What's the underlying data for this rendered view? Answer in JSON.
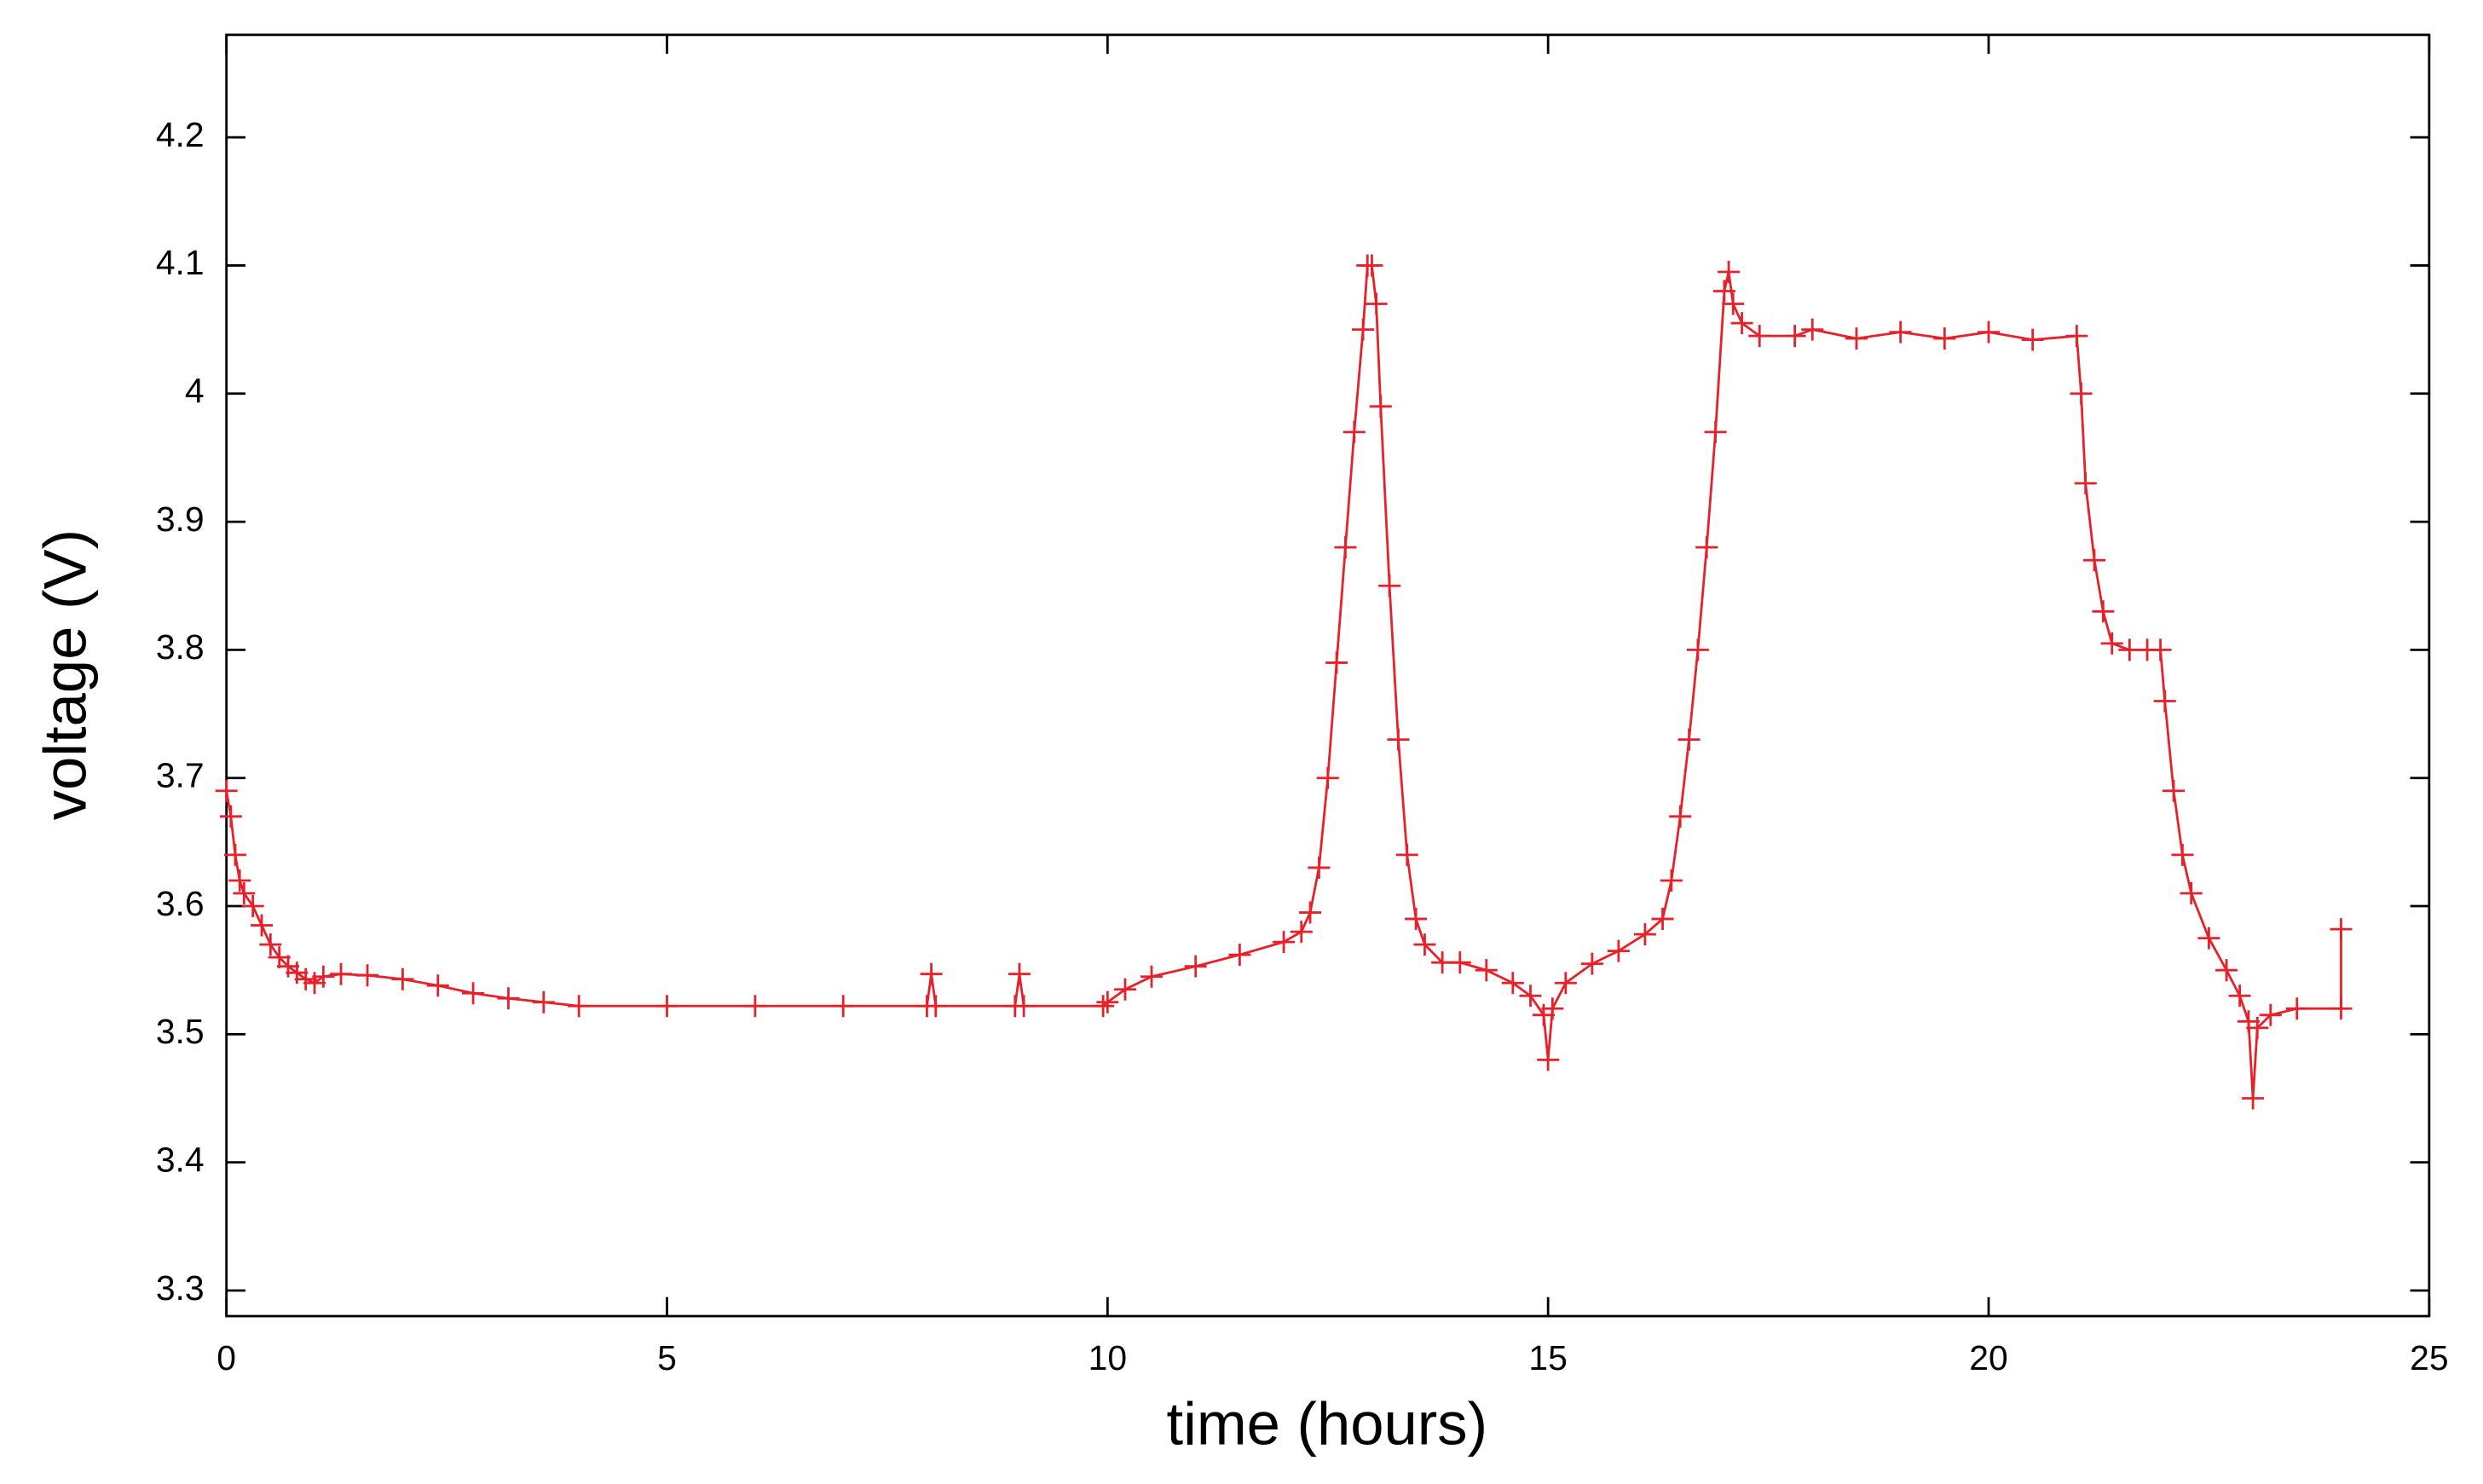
{
  "chart_data": {
    "type": "line",
    "xlabel": "time (hours)",
    "ylabel": "voltage (V)",
    "xlim": [
      0,
      25
    ],
    "xticks": [
      0,
      5,
      10,
      15,
      20,
      25
    ],
    "ylim": [
      3.28,
      4.28
    ],
    "yticks": [
      3.3,
      3.4,
      3.5,
      3.6,
      3.7,
      3.8,
      3.9,
      4,
      4.1,
      4.2
    ],
    "marker": "+",
    "x": [
      0,
      0.05,
      0.1,
      0.15,
      0.2,
      0.3,
      0.4,
      0.5,
      0.6,
      0.7,
      0.8,
      0.9,
      1.0,
      1.1,
      1.3,
      1.6,
      2.0,
      2.4,
      2.8,
      3.2,
      3.6,
      4.0,
      5.0,
      6.0,
      7.0,
      7.95,
      8.0,
      8.05,
      8.95,
      9.0,
      9.05,
      9.95,
      10.0,
      10.2,
      10.5,
      11.0,
      11.5,
      12.0,
      12.2,
      12.3,
      12.4,
      12.5,
      12.6,
      12.7,
      12.8,
      12.9,
      12.95,
      13.0,
      13.05,
      13.1,
      13.2,
      13.3,
      13.4,
      13.5,
      13.6,
      13.8,
      14.0,
      14.3,
      14.6,
      14.8,
      14.95,
      15.0,
      15.05,
      15.2,
      15.5,
      15.8,
      16.1,
      16.3,
      16.4,
      16.5,
      16.6,
      16.7,
      16.8,
      16.9,
      17.0,
      17.05,
      17.1,
      17.2,
      17.4,
      17.8,
      18.0,
      18.5,
      19.0,
      19.5,
      20.0,
      20.5,
      21.0,
      21.05,
      21.1,
      21.2,
      21.3,
      21.4,
      21.6,
      21.8,
      21.95,
      22.0,
      22.1,
      22.2,
      22.3,
      22.5,
      22.7,
      22.85,
      22.95,
      23.0,
      23.05,
      23.2,
      23.5,
      24.0,
      24.0
    ],
    "series": [
      {
        "color": "#e8202a",
        "values": [
          3.69,
          3.67,
          3.64,
          3.62,
          3.61,
          3.6,
          3.585,
          3.57,
          3.56,
          3.553,
          3.548,
          3.543,
          3.54,
          3.545,
          3.547,
          3.546,
          3.543,
          3.538,
          3.532,
          3.528,
          3.525,
          3.522,
          3.522,
          3.522,
          3.522,
          3.522,
          3.547,
          3.522,
          3.522,
          3.547,
          3.522,
          3.522,
          3.525,
          3.535,
          3.545,
          3.553,
          3.562,
          3.572,
          3.58,
          3.595,
          3.63,
          3.7,
          3.79,
          3.88,
          3.97,
          4.05,
          4.1,
          4.1,
          4.07,
          3.99,
          3.85,
          3.73,
          3.64,
          3.59,
          3.57,
          3.556,
          3.556,
          3.55,
          3.54,
          3.53,
          3.515,
          3.48,
          3.52,
          3.54,
          3.555,
          3.565,
          3.578,
          3.59,
          3.62,
          3.67,
          3.73,
          3.8,
          3.88,
          3.97,
          4.08,
          4.095,
          4.07,
          4.055,
          4.045,
          4.045,
          4.05,
          4.043,
          4.048,
          4.043,
          4.048,
          4.042,
          4.045,
          4.0,
          3.93,
          3.87,
          3.83,
          3.805,
          3.8,
          3.8,
          3.8,
          3.76,
          3.69,
          3.64,
          3.61,
          3.575,
          3.55,
          3.53,
          3.51,
          3.45,
          3.505,
          3.515,
          3.52,
          3.52,
          3.582
        ]
      }
    ]
  }
}
